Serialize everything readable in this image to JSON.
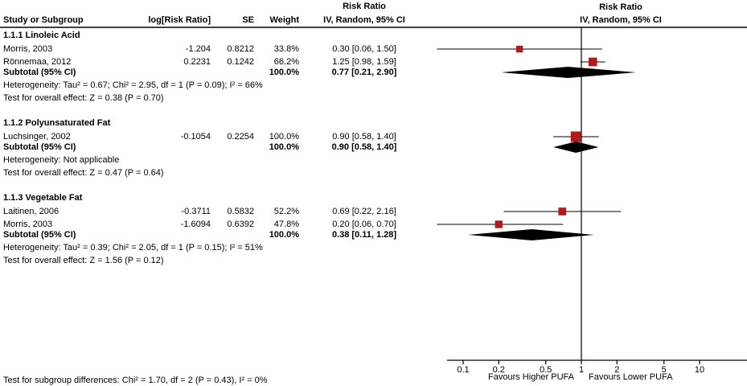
{
  "columns": {
    "study": "Study or Subgroup",
    "log_rr": "log[Risk Ratio]",
    "se": "SE",
    "weight": "Weight",
    "effect_line1": "Risk Ratio",
    "effect_line2": "IV, Random, 95% CI",
    "plot_line1": "Risk Ratio",
    "plot_line2": "IV, Random, 95% CI"
  },
  "footer": {
    "subgroup_test": "Test for subgroup differences: Chi² = 1.70, df = 2 (P = 0.43), I² = 0%"
  },
  "colors": {
    "marker": "#b01a1a",
    "diamond": "#000000",
    "line": "#000000"
  },
  "chart_data": {
    "type": "forest",
    "x_scale": "log",
    "null_line": 1,
    "x_ticks": [
      "0.1",
      "0.2",
      "0.5",
      "1",
      "2",
      "5",
      "10"
    ],
    "x_tick_values": [
      0.1,
      0.2,
      0.5,
      1,
      2,
      5,
      10
    ],
    "favours_left": "Favours Higher PUFA",
    "favours_right": "Favours Lower PUFA",
    "sections": [
      {
        "title": "1.1.1 Linoleic Acid",
        "studies": [
          {
            "study": "Morris, 2003",
            "log_rr": "-1.204",
            "se": "0.8212",
            "weight": "33.8%",
            "weight_pct": 33.8,
            "ci_text": "0.30 [0.06, 1.50]",
            "est": 0.3,
            "lo": 0.06,
            "hi": 1.5
          },
          {
            "study": "Rönnemaa, 2012",
            "log_rr": "0.2231",
            "se": "0.1242",
            "weight": "66.2%",
            "weight_pct": 66.2,
            "ci_text": "1.25 [0.98, 1.59]",
            "est": 1.25,
            "lo": 0.98,
            "hi": 1.59
          }
        ],
        "subtotal": {
          "label": "Subtotal (95% CI)",
          "weight": "100.0%",
          "ci_text": "0.77 [0.21, 2.90]",
          "est": 0.77,
          "lo": 0.21,
          "hi": 2.9
        },
        "heterogeneity": "Heterogeneity: Tau² = 0.67; Chi² = 2.95, df = 1 (P = 0.09); I² = 66%",
        "overall_effect": "Test for overall effect: Z = 0.38 (P = 0.70)"
      },
      {
        "title": "1.1.2 Polyunsaturated Fat",
        "studies": [
          {
            "study": "Luchsinger, 2002",
            "log_rr": "-0.1054",
            "se": "0.2254",
            "weight": "100.0%",
            "weight_pct": 100.0,
            "ci_text": "0.90 [0.58, 1.40]",
            "est": 0.9,
            "lo": 0.58,
            "hi": 1.4
          }
        ],
        "subtotal": {
          "label": "Subtotal (95% CI)",
          "weight": "100.0%",
          "ci_text": "0.90 [0.58, 1.40]",
          "est": 0.9,
          "lo": 0.58,
          "hi": 1.4
        },
        "heterogeneity": "Heterogeneity: Not applicable",
        "overall_effect": "Test for overall effect: Z = 0.47 (P = 0.64)"
      },
      {
        "title": "1.1.3 Vegetable Fat",
        "studies": [
          {
            "study": "Laitinen, 2006",
            "log_rr": "-0.3711",
            "se": "0.5832",
            "weight": "52.2%",
            "weight_pct": 52.2,
            "ci_text": "0.69 [0.22, 2.16]",
            "est": 0.69,
            "lo": 0.22,
            "hi": 2.16
          },
          {
            "study": "Morris, 2003",
            "log_rr": "-1.6094",
            "se": "0.6392",
            "weight": "47.8%",
            "weight_pct": 47.8,
            "ci_text": "0.20 [0.06, 0.70]",
            "est": 0.2,
            "lo": 0.06,
            "hi": 0.7
          }
        ],
        "subtotal": {
          "label": "Subtotal (95% CI)",
          "weight": "100.0%",
          "ci_text": "0.38 [0.11, 1.28]",
          "est": 0.38,
          "lo": 0.11,
          "hi": 1.28
        },
        "heterogeneity": "Heterogeneity: Tau² = 0.39; Chi² = 2.05, df = 1 (P = 0.15); I² = 51%",
        "overall_effect": "Test for overall effect: Z = 1.56 (P = 0.12)"
      }
    ]
  }
}
